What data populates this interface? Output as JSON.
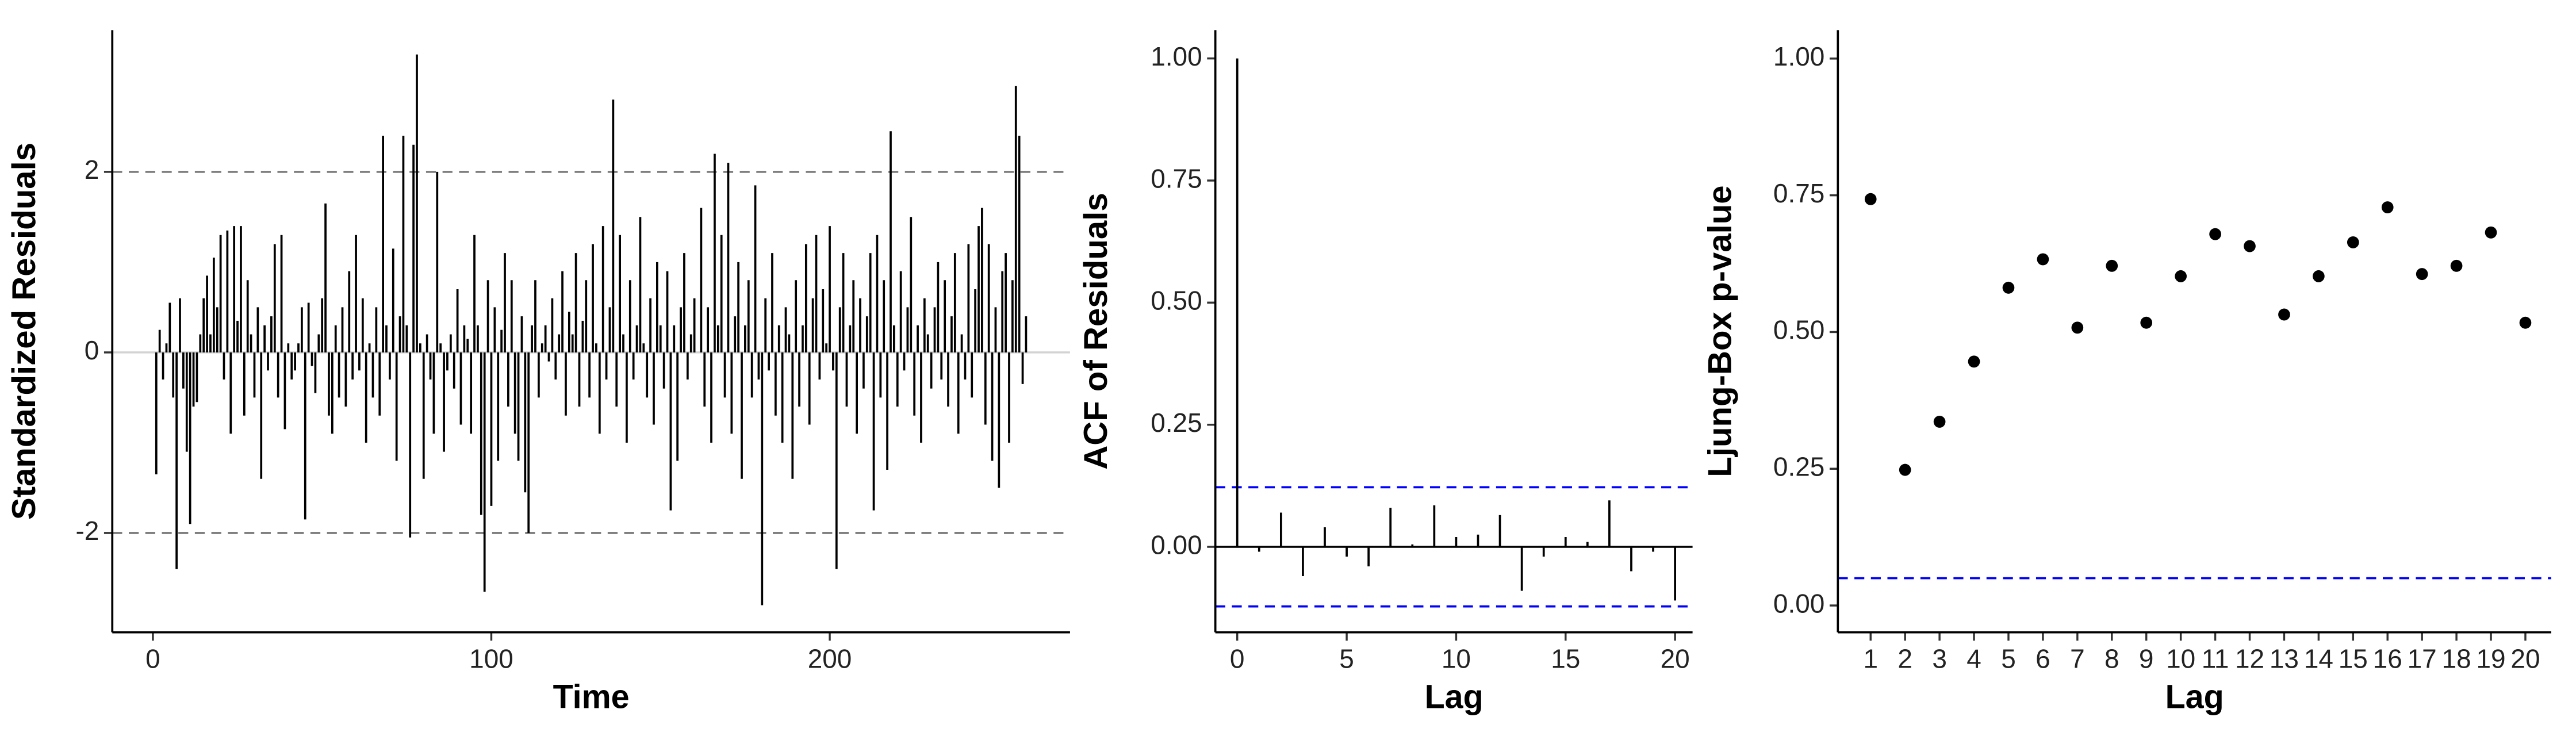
{
  "chart_data": [
    {
      "type": "bar",
      "xlabel": "Time",
      "ylabel": "Standardized Residuals",
      "x": [
        1,
        2,
        3,
        4,
        5,
        6,
        7,
        8,
        9,
        10,
        11,
        12,
        13,
        14,
        15,
        16,
        17,
        18,
        19,
        20,
        21,
        22,
        23,
        24,
        25,
        26,
        27,
        28,
        29,
        30,
        31,
        32,
        33,
        34,
        35,
        36,
        37,
        38,
        39,
        40,
        41,
        42,
        43,
        44,
        45,
        46,
        47,
        48,
        49,
        50,
        51,
        52,
        53,
        54,
        55,
        56,
        57,
        58,
        59,
        60,
        61,
        62,
        63,
        64,
        65,
        66,
        67,
        68,
        69,
        70,
        71,
        72,
        73,
        74,
        75,
        76,
        77,
        78,
        79,
        80,
        81,
        82,
        83,
        84,
        85,
        86,
        87,
        88,
        89,
        90,
        91,
        92,
        93,
        94,
        95,
        96,
        97,
        98,
        99,
        100,
        101,
        102,
        103,
        104,
        105,
        106,
        107,
        108,
        109,
        110,
        111,
        112,
        113,
        114,
        115,
        116,
        117,
        118,
        119,
        120,
        121,
        122,
        123,
        124,
        125,
        126,
        127,
        128,
        129,
        130,
        131,
        132,
        133,
        134,
        135,
        136,
        137,
        138,
        139,
        140,
        141,
        142,
        143,
        144,
        145,
        146,
        147,
        148,
        149,
        150,
        151,
        152,
        153,
        154,
        155,
        156,
        157,
        158,
        159,
        160,
        161,
        162,
        163,
        164,
        165,
        166,
        167,
        168,
        169,
        170,
        171,
        172,
        173,
        174,
        175,
        176,
        177,
        178,
        179,
        180,
        181,
        182,
        183,
        184,
        185,
        186,
        187,
        188,
        189,
        190,
        191,
        192,
        193,
        194,
        195,
        196,
        197,
        198,
        199,
        200,
        201,
        202,
        203,
        204,
        205,
        206,
        207,
        208,
        209,
        210,
        211,
        212,
        213,
        214,
        215,
        216,
        217,
        218,
        219,
        220,
        221,
        222,
        223,
        224,
        225,
        226,
        227,
        228,
        229,
        230,
        231,
        232,
        233,
        234,
        235,
        236,
        237,
        238,
        239,
        240,
        241,
        242,
        243,
        244,
        245,
        246,
        247,
        248,
        249,
        250,
        251,
        252,
        253,
        254,
        255,
        256,
        257,
        258
      ],
      "values": [
        -1.35,
        0.25,
        -0.3,
        0.1,
        0.55,
        -0.5,
        -2.4,
        0.6,
        -0.4,
        -1.1,
        -1.9,
        -0.6,
        -0.55,
        0.2,
        0.6,
        0.85,
        0.2,
        1.05,
        0.5,
        1.3,
        -0.3,
        1.35,
        -0.9,
        1.4,
        0.35,
        1.4,
        -0.7,
        0.8,
        0.2,
        -0.5,
        0.5,
        -1.4,
        0.3,
        -0.2,
        0.4,
        1.2,
        -0.5,
        1.3,
        -0.85,
        0.1,
        -0.3,
        -0.2,
        0.1,
        0.5,
        -1.85,
        0.55,
        -0.15,
        -0.45,
        0.2,
        0.6,
        1.65,
        -0.7,
        -0.9,
        0.3,
        -0.5,
        0.5,
        -0.6,
        0.9,
        -0.3,
        1.3,
        -0.2,
        0.6,
        -1.0,
        0.1,
        -0.5,
        0.5,
        -0.7,
        2.4,
        0.3,
        -0.3,
        1.15,
        -1.2,
        0.4,
        2.4,
        0.3,
        -2.05,
        2.3,
        3.3,
        0.1,
        -1.4,
        0.2,
        -0.3,
        -0.9,
        2.0,
        0.1,
        -1.1,
        -0.2,
        0.2,
        -0.4,
        0.7,
        -0.8,
        0.3,
        0.15,
        -0.9,
        1.3,
        0.3,
        -1.8,
        -2.65,
        0.8,
        -1.7,
        0.5,
        -1.2,
        0.25,
        1.1,
        -0.6,
        0.8,
        -0.9,
        -1.2,
        0.4,
        -1.55,
        -2.0,
        0.3,
        0.8,
        -0.5,
        0.1,
        0.3,
        -0.1,
        0.6,
        -0.3,
        0.2,
        0.9,
        -0.7,
        0.45,
        0.2,
        1.1,
        -0.6,
        0.35,
        0.8,
        -0.5,
        1.2,
        0.1,
        -0.9,
        1.4,
        -0.3,
        0.5,
        2.8,
        -0.6,
        1.3,
        0.2,
        -1.0,
        0.8,
        -0.3,
        0.3,
        1.5,
        0.1,
        -0.5,
        0.6,
        -0.8,
        1.0,
        0.3,
        -0.4,
        0.9,
        -1.75,
        0.3,
        -1.2,
        0.5,
        1.1,
        -0.3,
        0.2,
        0.6,
        0.0,
        1.6,
        -0.6,
        0.5,
        -1.0,
        2.2,
        0.3,
        1.3,
        -0.5,
        2.1,
        -0.9,
        0.4,
        1.0,
        -1.4,
        0.3,
        0.8,
        -0.5,
        1.85,
        -0.3,
        -2.8,
        0.6,
        -0.2,
        1.1,
        -0.7,
        0.3,
        -1.0,
        0.5,
        0.2,
        -1.4,
        0.8,
        -0.6,
        0.3,
        1.2,
        -0.8,
        0.6,
        1.3,
        -0.3,
        0.7,
        0.1,
        1.4,
        -0.2,
        -2.4,
        0.5,
        1.1,
        -0.6,
        0.3,
        0.8,
        -0.9,
        0.6,
        -0.4,
        0.4,
        1.1,
        -1.75,
        1.3,
        -0.5,
        0.8,
        -1.3,
        2.45,
        0.3,
        -0.6,
        0.9,
        -0.2,
        0.5,
        1.5,
        -0.7,
        0.3,
        -1.0,
        0.6,
        0.2,
        -0.4,
        0.5,
        1.0,
        -0.3,
        0.8,
        -0.6,
        0.4,
        1.1,
        -0.9,
        0.2,
        -0.3,
        1.2,
        -0.5,
        0.7,
        1.4,
        1.6,
        -0.8,
        1.2,
        -1.2,
        0.5,
        -1.5,
        0.9,
        1.1,
        -1.0,
        0.8,
        2.95,
        2.4,
        -0.35,
        0.4
      ],
      "color": "#000000",
      "baseline_color": "#d3d3d3",
      "xlim": [
        -12,
        271
      ],
      "xticks": [
        0,
        100,
        200
      ],
      "ylim": [
        -3.1,
        3.57
      ],
      "yticks": [
        -2,
        0,
        2
      ],
      "hlines": [
        -2,
        2
      ],
      "hline_color": "#808080"
    },
    {
      "type": "bar",
      "xlabel": "Lag",
      "ylabel": "ACF of Residuals",
      "x": [
        0,
        1,
        2,
        3,
        4,
        5,
        6,
        7,
        8,
        9,
        10,
        11,
        12,
        13,
        14,
        15,
        16,
        17,
        18,
        19,
        20
      ],
      "values": [
        1.0,
        -0.01,
        0.07,
        -0.06,
        0.04,
        -0.02,
        -0.04,
        0.08,
        0.005,
        0.085,
        0.02,
        0.025,
        0.065,
        -0.09,
        -0.02,
        0.02,
        0.01,
        0.095,
        -0.05,
        -0.01,
        -0.11
      ],
      "color": "#000000",
      "baseline_color": "#000000",
      "xlim": [
        -1,
        20.8
      ],
      "xticks": [
        0,
        5,
        10,
        15,
        20
      ],
      "ylim": [
        -0.175,
        1.058
      ],
      "yticks": [
        {
          "value": 0,
          "label": "0.00"
        },
        {
          "value": 0.25,
          "label": "0.25"
        },
        {
          "value": 0.5,
          "label": "0.50"
        },
        {
          "value": 0.75,
          "label": "0.75"
        },
        {
          "value": 1,
          "label": "1.00"
        }
      ],
      "hlines": [
        -0.122,
        0.122
      ],
      "hline_color": "#0000ff"
    },
    {
      "type": "scatter",
      "xlabel": "Lag",
      "ylabel": "Ljung-Box p-value",
      "x": [
        1,
        2,
        3,
        4,
        5,
        6,
        7,
        8,
        9,
        10,
        11,
        12,
        13,
        14,
        15,
        16,
        17,
        18,
        19,
        20
      ],
      "values": [
        0.743,
        0.248,
        0.336,
        0.446,
        0.581,
        0.633,
        0.508,
        0.621,
        0.517,
        0.602,
        0.679,
        0.657,
        0.532,
        0.602,
        0.664,
        0.728,
        0.606,
        0.621,
        0.682,
        0.517
      ],
      "color": "#000000",
      "xlim": [
        0.05,
        20.75
      ],
      "xticks": [
        1,
        2,
        3,
        4,
        5,
        6,
        7,
        8,
        9,
        10,
        11,
        12,
        13,
        14,
        15,
        16,
        17,
        18,
        19,
        20
      ],
      "ylim": [
        -0.049,
        1.052
      ],
      "yticks": [
        {
          "value": 0,
          "label": "0.00"
        },
        {
          "value": 0.25,
          "label": "0.25"
        },
        {
          "value": 0.5,
          "label": "0.50"
        },
        {
          "value": 0.75,
          "label": "0.75"
        },
        {
          "value": 1,
          "label": "1.00"
        }
      ],
      "hlines": [
        0.05
      ],
      "hline_color": "#0000ff"
    }
  ]
}
